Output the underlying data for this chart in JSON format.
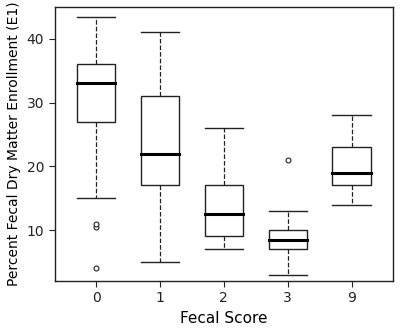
{
  "categories": [
    0,
    1,
    2,
    3,
    9
  ],
  "boxes": [
    {
      "label": "0",
      "whisker_low": 15.0,
      "q1": 27.0,
      "median": 33.0,
      "q3": 36.0,
      "whisker_high": 43.5,
      "outliers": [
        4.0,
        10.5,
        11.0
      ]
    },
    {
      "label": "1",
      "whisker_low": 5.0,
      "q1": 17.0,
      "median": 22.0,
      "q3": 31.0,
      "whisker_high": 41.0,
      "outliers": []
    },
    {
      "label": "2",
      "whisker_low": 7.0,
      "q1": 9.0,
      "median": 12.5,
      "q3": 17.0,
      "whisker_high": 26.0,
      "outliers": []
    },
    {
      "label": "3",
      "whisker_low": 3.0,
      "q1": 7.0,
      "median": 8.5,
      "q3": 10.0,
      "whisker_high": 13.0,
      "outliers": [
        21.0
      ]
    },
    {
      "label": "9",
      "whisker_low": 14.0,
      "q1": 17.0,
      "median": 19.0,
      "q3": 23.0,
      "whisker_high": 28.0,
      "outliers": []
    }
  ],
  "xlabel": "Fecal Score",
  "ylabel": "Percent Fecal Dry Matter Enrollment (E1)",
  "ylim": [
    2,
    45
  ],
  "yticks": [
    10,
    20,
    30,
    40
  ],
  "box_color": "white",
  "box_linecolor": "#222222",
  "median_linecolor": "black",
  "whisker_linestyle": "dashed",
  "flier_color": "white",
  "flier_edgecolor": "#222222",
  "background_color": "white",
  "xlabel_fontsize": 11,
  "ylabel_fontsize": 10,
  "tick_fontsize": 10,
  "box_width": 0.6,
  "cap_ratio": 0.5
}
